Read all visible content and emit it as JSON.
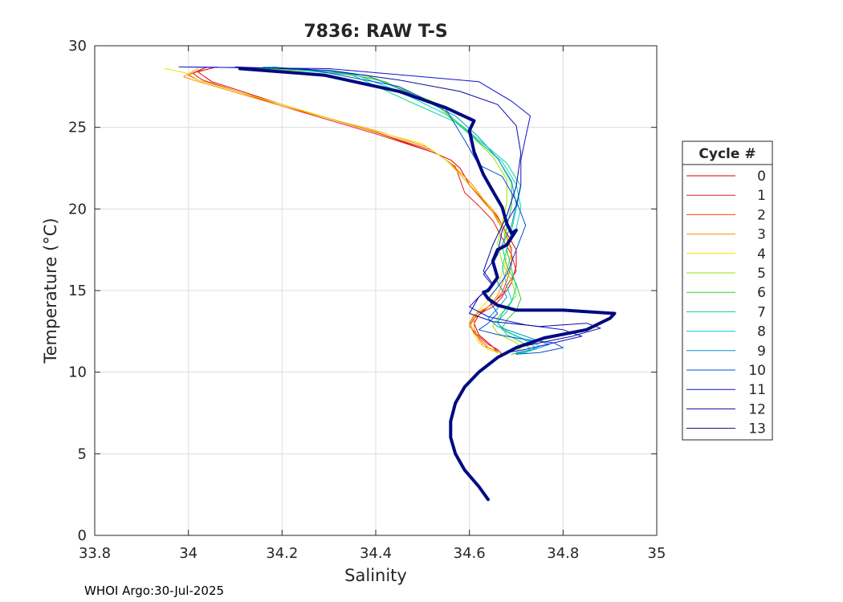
{
  "chart_data": {
    "type": "line",
    "title": "7836: RAW T-S",
    "xlabel": "Salinity",
    "ylabel": "Temperature (°C)",
    "xlim": [
      33.8,
      35
    ],
    "ylim": [
      0,
      30
    ],
    "xticks": [
      "33.8",
      "34",
      "34.2",
      "34.4",
      "34.6",
      "34.8",
      "35"
    ],
    "yticks": [
      "0",
      "5",
      "10",
      "15",
      "20",
      "25",
      "30"
    ],
    "grid": true,
    "legend": {
      "title": "Cycle #",
      "position": "right"
    },
    "footer": "WHOI Argo:30-Jul-2025",
    "series": [
      {
        "name": "0",
        "color": "#d40000",
        "x": [
          34.06,
          34.02,
          34.05,
          34.2,
          34.4,
          34.52,
          34.56,
          34.58,
          34.6,
          34.63,
          34.66,
          34.68,
          34.7,
          34.7,
          34.69,
          34.68,
          34.66,
          34.64,
          34.62,
          34.61,
          34.62,
          34.64,
          34.66,
          34.66
        ],
        "y": [
          28.7,
          28.4,
          27.8,
          26.4,
          24.7,
          23.5,
          23.0,
          22.5,
          21.5,
          20.5,
          19.5,
          18.5,
          17.5,
          16.5,
          15.5,
          15.0,
          14.5,
          14.0,
          13.5,
          13.0,
          12.3,
          11.8,
          11.3,
          11.2
        ]
      },
      {
        "name": "1",
        "color": "#e31a1c",
        "x": [
          34.04,
          34.01,
          34.03,
          34.2,
          34.4,
          34.53,
          34.57,
          34.58,
          34.59,
          34.62,
          34.65,
          34.67,
          34.69,
          34.7,
          34.68,
          34.67,
          34.65,
          34.63,
          34.61,
          34.6,
          34.62,
          34.64,
          34.66,
          34.67
        ],
        "y": [
          28.7,
          28.3,
          27.9,
          26.3,
          24.6,
          23.4,
          22.6,
          21.8,
          21.0,
          20.2,
          19.3,
          18.2,
          17.2,
          16.2,
          15.3,
          14.6,
          14.0,
          13.7,
          13.3,
          12.8,
          12.2,
          11.7,
          11.4,
          11.1
        ]
      },
      {
        "name": "2",
        "color": "#f04a00",
        "x": [
          34.03,
          34.0,
          34.02,
          34.2,
          34.4,
          34.52,
          34.56,
          34.59,
          34.62,
          34.65,
          34.67,
          34.69,
          34.69,
          34.68,
          34.67,
          34.65,
          34.63,
          34.61,
          34.6,
          34.61,
          34.63,
          34.64,
          34.66
        ],
        "y": [
          28.6,
          28.2,
          27.9,
          26.4,
          24.7,
          23.6,
          22.8,
          21.8,
          20.8,
          19.8,
          18.8,
          17.6,
          16.6,
          15.6,
          14.9,
          14.2,
          13.8,
          13.5,
          13.0,
          12.4,
          11.8,
          11.5,
          11.3
        ]
      },
      {
        "name": "3",
        "color": "#ff8c00",
        "x": [
          34.02,
          33.99,
          34.01,
          34.2,
          34.4,
          34.51,
          34.56,
          34.6,
          34.63,
          34.66,
          34.68,
          34.69,
          34.68,
          34.67,
          34.66,
          34.64,
          34.62,
          34.61,
          34.61,
          34.62,
          34.63,
          34.65,
          34.66
        ],
        "y": [
          28.6,
          28.1,
          27.9,
          26.3,
          24.8,
          23.8,
          22.8,
          21.7,
          20.6,
          19.6,
          18.4,
          17.3,
          16.3,
          15.4,
          14.7,
          14.0,
          13.7,
          13.3,
          12.7,
          12.0,
          11.6,
          11.4,
          11.2
        ]
      },
      {
        "name": "4",
        "color": "#e6e600",
        "x": [
          33.95,
          34.0,
          34.02,
          34.2,
          34.38,
          34.5,
          34.55,
          34.59,
          34.63,
          34.66,
          34.68,
          34.68,
          34.67,
          34.66,
          34.64,
          34.62,
          34.61,
          34.6,
          34.61,
          34.62,
          34.64,
          34.66,
          34.67
        ],
        "y": [
          28.6,
          28.3,
          27.9,
          26.4,
          24.9,
          24.0,
          23.0,
          21.8,
          20.6,
          19.4,
          18.2,
          17.1,
          16.1,
          15.2,
          14.4,
          13.8,
          13.4,
          12.9,
          12.3,
          11.8,
          11.4,
          11.2,
          11.1
        ]
      },
      {
        "name": "5",
        "color": "#9be000",
        "x": [
          34.14,
          34.3,
          34.4,
          34.52,
          34.6,
          34.65,
          34.68,
          34.68,
          34.67,
          34.66,
          34.67,
          34.69,
          34.7,
          34.68,
          34.66,
          34.65,
          34.66,
          34.68,
          34.7,
          34.71,
          34.7,
          34.68
        ],
        "y": [
          28.6,
          28.4,
          28.0,
          26.6,
          24.6,
          23.2,
          21.8,
          20.4,
          19.1,
          17.9,
          16.7,
          15.6,
          14.7,
          14.0,
          13.3,
          12.8,
          12.4,
          12.1,
          11.8,
          11.5,
          11.3,
          11.2
        ]
      },
      {
        "name": "6",
        "color": "#33cc33",
        "x": [
          34.15,
          34.32,
          34.42,
          34.54,
          34.61,
          34.66,
          34.69,
          34.69,
          34.68,
          34.67,
          34.68,
          34.7,
          34.71,
          34.7,
          34.68,
          34.67,
          34.68,
          34.7,
          34.72,
          34.73,
          34.71,
          34.69
        ],
        "y": [
          28.6,
          28.4,
          27.8,
          26.2,
          24.4,
          23.1,
          21.6,
          20.2,
          18.9,
          17.7,
          16.5,
          15.4,
          14.5,
          13.8,
          13.2,
          12.7,
          12.3,
          12.0,
          11.7,
          11.4,
          11.2,
          11.1
        ]
      },
      {
        "name": "7",
        "color": "#00d68f",
        "x": [
          34.16,
          34.35,
          34.47,
          34.58,
          34.63,
          34.68,
          34.71,
          34.7,
          34.69,
          34.68,
          34.69,
          34.7,
          34.69,
          34.67,
          34.66,
          34.68,
          34.71,
          34.73,
          34.74,
          34.72,
          34.7
        ],
        "y": [
          28.7,
          28.2,
          26.6,
          25.2,
          24.0,
          22.8,
          21.4,
          20.0,
          18.7,
          17.5,
          16.3,
          15.2,
          14.3,
          13.6,
          13.0,
          12.5,
          12.1,
          11.8,
          11.5,
          11.2,
          11.1
        ]
      },
      {
        "name": "8",
        "color": "#00d0d8",
        "x": [
          34.17,
          34.35,
          34.45,
          34.55,
          34.62,
          34.67,
          34.7,
          34.71,
          34.7,
          34.68,
          34.67,
          34.68,
          34.69,
          34.68,
          34.66,
          34.67,
          34.7,
          34.73,
          34.75,
          34.73,
          34.7
        ],
        "y": [
          28.7,
          28.3,
          27.2,
          25.8,
          24.1,
          22.9,
          21.5,
          20.1,
          18.8,
          17.6,
          16.4,
          15.3,
          14.4,
          13.7,
          13.1,
          12.6,
          12.2,
          11.9,
          11.6,
          11.3,
          11.1
        ]
      },
      {
        "name": "9",
        "color": "#0096c8",
        "x": [
          34.18,
          34.38,
          34.48,
          34.57,
          34.62,
          34.66,
          34.69,
          34.7,
          34.69,
          34.67,
          34.65,
          34.66,
          34.68,
          34.66,
          34.64,
          34.66,
          34.7,
          34.74,
          34.77,
          34.74,
          34.7
        ],
        "y": [
          28.7,
          28.2,
          27.0,
          25.7,
          24.4,
          23.1,
          21.7,
          20.3,
          19.0,
          17.8,
          16.6,
          15.5,
          14.6,
          13.9,
          13.3,
          12.8,
          12.4,
          12.0,
          11.7,
          11.4,
          11.2
        ]
      },
      {
        "name": "10",
        "color": "#0050d8",
        "x": [
          34.0,
          34.25,
          34.45,
          34.55,
          34.59,
          34.62,
          34.67,
          34.7,
          34.72,
          34.7,
          34.68,
          34.66,
          34.64,
          34.66,
          34.64,
          34.62,
          34.66,
          34.72,
          34.78,
          34.8,
          34.75,
          34.7
        ],
        "y": [
          28.7,
          28.6,
          27.5,
          26.1,
          24.2,
          22.7,
          22.0,
          20.5,
          19.0,
          17.5,
          16.0,
          15.2,
          14.5,
          13.6,
          13.0,
          12.6,
          12.3,
          12.0,
          11.8,
          11.5,
          11.2,
          11.1
        ]
      },
      {
        "name": "11",
        "color": "#1010d0",
        "x": [
          33.98,
          34.3,
          34.5,
          34.62,
          34.69,
          34.73,
          34.72,
          34.71,
          34.71,
          34.7,
          34.67,
          34.66,
          34.63,
          34.65,
          34.62,
          34.6,
          34.64,
          34.72,
          34.8,
          34.84,
          34.78,
          34.72,
          34.68
        ],
        "y": [
          28.7,
          28.6,
          28.1,
          27.8,
          26.6,
          25.7,
          24.4,
          23.0,
          21.5,
          20.2,
          18.7,
          17.2,
          16.0,
          15.3,
          14.6,
          14.0,
          13.4,
          12.9,
          12.6,
          12.2,
          11.8,
          11.4,
          11.2
        ]
      },
      {
        "name": "12",
        "color": "#0a0aa0",
        "x": [
          34.1,
          34.3,
          34.45,
          34.58,
          34.66,
          34.7,
          34.71,
          34.7,
          34.68,
          34.65,
          34.63,
          34.65,
          34.62,
          34.6,
          34.65,
          34.75,
          34.85,
          34.88,
          34.82,
          34.75,
          34.7
        ],
        "y": [
          28.7,
          28.5,
          27.9,
          27.2,
          26.4,
          25.1,
          23.4,
          21.4,
          19.6,
          17.8,
          16.2,
          15.4,
          14.6,
          13.6,
          13.1,
          12.8,
          13.0,
          12.7,
          12.2,
          11.8,
          11.5
        ]
      },
      {
        "name": "13",
        "color": "#000a80",
        "x": [
          34.11,
          34.29,
          34.45,
          34.55,
          34.61,
          34.6,
          34.61,
          34.63,
          34.65,
          34.67,
          34.68,
          34.69,
          34.7,
          34.68,
          34.66,
          34.65,
          34.66,
          34.65,
          34.64,
          34.63,
          34.64,
          34.66,
          34.7,
          34.8,
          34.91,
          34.9,
          34.85,
          34.76,
          34.7,
          34.66,
          34.62,
          34.59,
          34.57,
          34.56,
          34.56,
          34.57,
          34.59,
          34.62,
          34.64
        ],
        "y": [
          28.6,
          28.2,
          27.2,
          26.2,
          25.4,
          24.8,
          23.5,
          22.1,
          21.1,
          20.1,
          19.1,
          18.5,
          18.7,
          17.8,
          17.5,
          16.8,
          15.8,
          15.4,
          15.0,
          14.9,
          14.5,
          14.1,
          13.8,
          13.8,
          13.6,
          13.3,
          12.6,
          12.1,
          11.5,
          10.9,
          10.0,
          9.1,
          8.1,
          7.0,
          6.0,
          5.0,
          4.0,
          3.0,
          2.2
        ]
      }
    ]
  }
}
